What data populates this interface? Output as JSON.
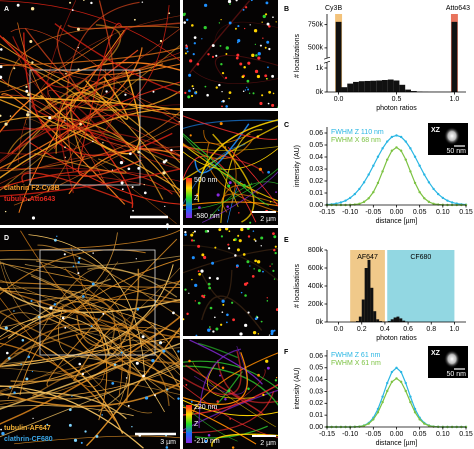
{
  "figure": {
    "panel_labels": [
      "A",
      "B",
      "C",
      "D",
      "E",
      "F"
    ],
    "image_a": {
      "label_1": "clathrin F2-Cy3B",
      "label_2": "tubulin-Atto643",
      "scalebar": "2 µm",
      "colorbar_top": "500 nm",
      "colorbar_mid": "Z",
      "colorbar_bottom": "-580 nm"
    },
    "image_d": {
      "label_1": "tubulin-AF647",
      "label_2": "clathrin-CF680",
      "scalebar_large": "3 µm",
      "scalebar": "2 µm",
      "colorbar_top": "220 nm",
      "colorbar_mid": "Z",
      "colorbar_bottom": "-210 nm"
    }
  },
  "chart_data": [
    {
      "type": "histogram",
      "xlabel": "photon ratios",
      "ylabel": "# localizations",
      "color": "#111111",
      "bins": [
        -0.025,
        0.025,
        0.075,
        0.125,
        0.175,
        0.225,
        0.275,
        0.325,
        0.375,
        0.425,
        0.475,
        0.525,
        0.575,
        0.625,
        0.675,
        0.725,
        0.775,
        0.825,
        0.875,
        0.925,
        0.975,
        1.025
      ],
      "values": [
        780000,
        200,
        350,
        420,
        450,
        460,
        470,
        480,
        500,
        520,
        480,
        300,
        100,
        40,
        20,
        10,
        5,
        5,
        5,
        5,
        780000
      ],
      "xlim": [
        -0.1,
        1.1
      ],
      "xticks": [
        {
          "value": 0,
          "label": "0.0"
        },
        0.5,
        {
          "value": 1,
          "label": "1.0"
        }
      ],
      "ylim": [
        0,
        800000
      ],
      "axis_break": [
        1200,
        400000
      ],
      "yticks": [
        {
          "value": 0,
          "label": "0k"
        },
        {
          "value": 1000,
          "label": "1k"
        },
        {
          "value": 500000,
          "label": "500k"
        },
        {
          "value": 750000,
          "label": "750k"
        }
      ],
      "bands": [
        {
          "label": "Cy3B",
          "range": [
            -0.03,
            0.03
          ],
          "color": "#f3c27a"
        },
        {
          "label": "Atto643",
          "range": [
            0.97,
            1.03
          ],
          "color": "#e8735c"
        }
      ]
    },
    {
      "type": "line",
      "xlabel": "distance [µm]",
      "ylabel": "intensity (AU)",
      "x": [
        -0.15,
        -0.14,
        -0.13,
        -0.12,
        -0.11,
        -0.1,
        -0.09,
        -0.08,
        -0.07,
        -0.06,
        -0.05,
        -0.04,
        -0.03,
        -0.02,
        -0.01,
        0,
        0.01,
        0.02,
        0.03,
        0.04,
        0.05,
        0.06,
        0.07,
        0.08,
        0.09,
        0.1,
        0.11,
        0.12,
        0.13,
        0.14,
        0.15
      ],
      "series": [
        {
          "name": "FWHM Z 110 nm",
          "color": "#29b6e3",
          "values": [
            0.0003,
            0.0006,
            0.0012,
            0.0021,
            0.0036,
            0.0059,
            0.0091,
            0.0134,
            0.0189,
            0.0254,
            0.0327,
            0.0402,
            0.0472,
            0.0529,
            0.0567,
            0.058,
            0.0567,
            0.0529,
            0.0472,
            0.0402,
            0.0327,
            0.0254,
            0.0189,
            0.0134,
            0.0091,
            0.0059,
            0.0036,
            0.0021,
            0.0012,
            0.0006,
            0.0003
          ]
        },
        {
          "name": "FWHM X 68 nm",
          "color": "#7cc242",
          "values": [
            0,
            0,
            0,
            0,
            0,
            0.0001,
            0.0004,
            0.001,
            0.0026,
            0.0056,
            0.0107,
            0.0184,
            0.028,
            0.0378,
            0.0452,
            0.048,
            0.0452,
            0.0378,
            0.028,
            0.0184,
            0.0107,
            0.0056,
            0.0026,
            0.001,
            0.0004,
            0.0001,
            0,
            0,
            0,
            0,
            0
          ]
        }
      ],
      "xlim": [
        -0.15,
        0.15
      ],
      "xticks": [
        -0.15,
        {
          "value": -0.1,
          "label": "-0.10"
        },
        -0.05,
        {
          "value": 0,
          "label": "0.00"
        },
        0.05,
        {
          "value": 0.1,
          "label": "0.10"
        },
        0.15
      ],
      "ylim": [
        0,
        0.065
      ],
      "yticks": [
        {
          "value": 0,
          "label": "0.00"
        },
        0.01,
        0.02,
        0.03,
        0.04,
        0.05,
        0.06
      ],
      "inset": {
        "label": "XZ",
        "scalebar": "50 nm"
      }
    },
    {
      "type": "histogram",
      "xlabel": "photon ratios",
      "ylabel": "# localisations",
      "color": "#111111",
      "bins": [
        0.15,
        0.175,
        0.2,
        0.225,
        0.25,
        0.275,
        0.3,
        0.325,
        0.35,
        0.375,
        0.4,
        0.425,
        0.45,
        0.475,
        0.5,
        0.525,
        0.55,
        0.575,
        0.6
      ],
      "values": [
        10000,
        60000,
        250000,
        600000,
        690000,
        380000,
        120000,
        30000,
        10000,
        5000,
        5000,
        10000,
        30000,
        50000,
        60000,
        40000,
        15000,
        5000
      ],
      "xlim": [
        -0.1,
        1.1
      ],
      "xticks": [
        {
          "value": 0,
          "label": "0.0"
        },
        0.2,
        0.4,
        0.6,
        0.8,
        {
          "value": 1,
          "label": "1.0"
        }
      ],
      "ylim": [
        0,
        800000
      ],
      "yticks": [
        {
          "value": 0,
          "label": "0k"
        },
        {
          "value": 200000,
          "label": "200k"
        },
        {
          "value": 400000,
          "label": "400k"
        },
        {
          "value": 600000,
          "label": "600k"
        },
        {
          "value": 800000,
          "label": "800k"
        }
      ],
      "bands": [
        {
          "label": "AF647",
          "range": [
            0.1,
            0.4
          ],
          "color": "#f0c98a"
        },
        {
          "label": "CF680",
          "range": [
            0.42,
            1.0
          ],
          "color": "#92d7e2"
        }
      ]
    },
    {
      "type": "line",
      "xlabel": "distance [µm]",
      "ylabel": "intensity (AU)",
      "x": [
        -0.15,
        -0.14,
        -0.13,
        -0.12,
        -0.11,
        -0.1,
        -0.09,
        -0.08,
        -0.07,
        -0.06,
        -0.05,
        -0.04,
        -0.03,
        -0.02,
        -0.01,
        0,
        0.01,
        0.02,
        0.03,
        0.04,
        0.05,
        0.06,
        0.07,
        0.08,
        0.09,
        0.1,
        0.11,
        0.12,
        0.13,
        0.14,
        0.15
      ],
      "series": [
        {
          "name": "FWHM Z 61 nm",
          "color": "#29b6e3",
          "values": [
            0,
            0,
            0,
            0,
            0,
            0,
            0.0001,
            0.0004,
            0.0013,
            0.0034,
            0.0078,
            0.0152,
            0.0256,
            0.0371,
            0.0464,
            0.05,
            0.0464,
            0.0371,
            0.0256,
            0.0152,
            0.0078,
            0.0034,
            0.0013,
            0.0004,
            0.0001,
            0,
            0,
            0,
            0,
            0,
            0
          ]
        },
        {
          "name": "FWHM X 61 nm",
          "color": "#7cc242",
          "values": [
            0,
            0,
            0,
            0,
            0,
            0,
            0.0001,
            0.0003,
            0.0011,
            0.0028,
            0.0064,
            0.0124,
            0.021,
            0.0304,
            0.0381,
            0.041,
            0.0381,
            0.0304,
            0.021,
            0.0124,
            0.0064,
            0.0028,
            0.0011,
            0.0003,
            0.0001,
            0,
            0,
            0,
            0,
            0,
            0
          ]
        }
      ],
      "xlim": [
        -0.15,
        0.15
      ],
      "xticks": [
        -0.15,
        {
          "value": -0.1,
          "label": "-0.10"
        },
        -0.05,
        {
          "value": 0,
          "label": "0.00"
        },
        0.05,
        {
          "value": 0.1,
          "label": "0.10"
        },
        0.15
      ],
      "ylim": [
        0,
        0.065
      ],
      "yticks": [
        {
          "value": 0,
          "label": "0.00"
        },
        0.01,
        0.02,
        0.03,
        0.04,
        0.05,
        0.06
      ],
      "inset": {
        "label": "XZ",
        "scalebar": "50 nm"
      }
    }
  ]
}
